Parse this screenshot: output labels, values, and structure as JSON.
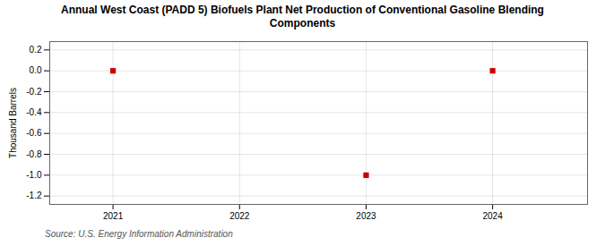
{
  "chart_data": {
    "type": "scatter",
    "title": "Annual West Coast (PADD 5) Biofuels Plant Net Production of Conventional Gasoline Blending\nComponents",
    "ylabel": "Thousand Barrels",
    "source": "Source: U.S. Energy Information Administration",
    "x": [
      2021,
      2023,
      2024
    ],
    "values": [
      0.0,
      -1.0,
      0.0
    ],
    "color": "#cc0000",
    "marker": "square",
    "xlim": [
      2020.5,
      2024.75
    ],
    "xticks": [
      2021,
      2022,
      2023,
      2024
    ],
    "ylim": [
      -1.28,
      0.28
    ],
    "yticks": [
      0.2,
      {
        "value": 0.0,
        "label": "0.0"
      },
      -0.2,
      -0.4,
      -0.6,
      -0.8,
      {
        "value": -1.0,
        "label": "-1.0"
      },
      -1.2
    ],
    "grid": true
  }
}
